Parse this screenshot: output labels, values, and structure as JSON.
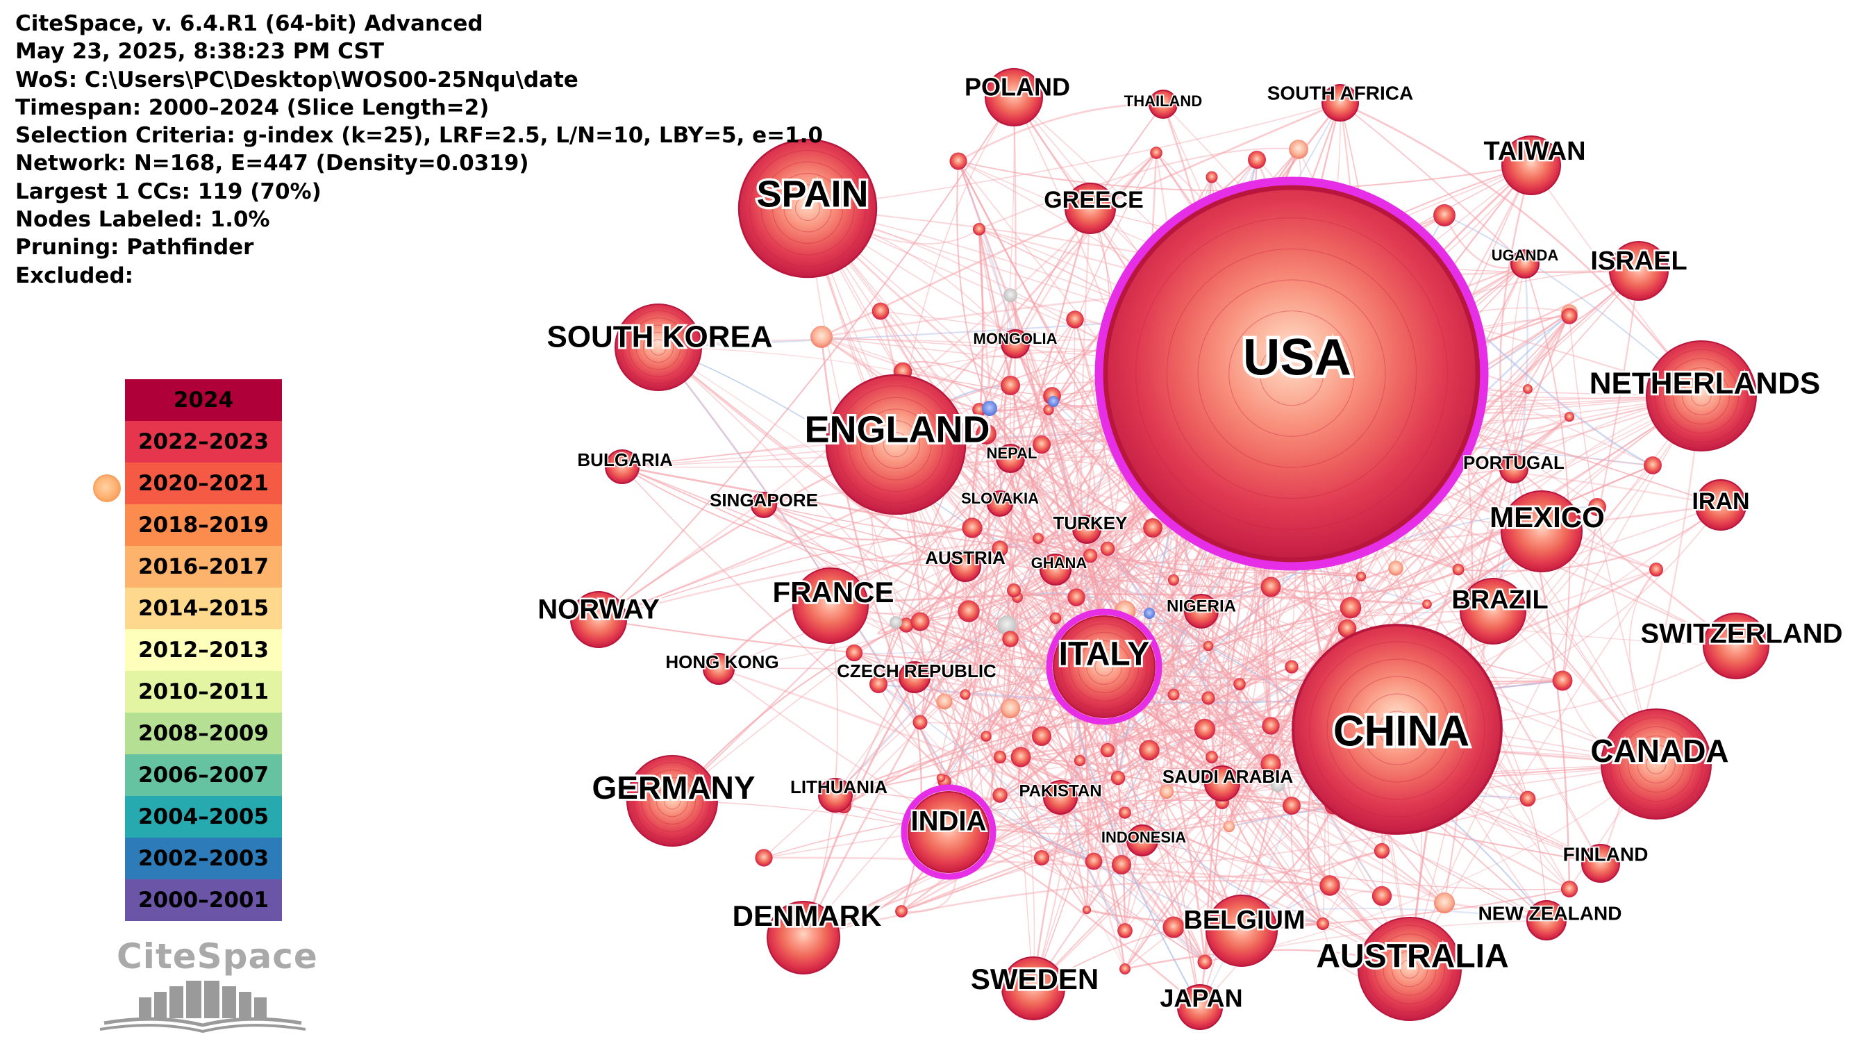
{
  "header": {
    "lines": [
      "CiteSpace, v. 6.4.R1 (64-bit) Advanced",
      "May 23, 2025, 8:38:23 PM CST",
      "WoS: C:\\Users\\PC\\Desktop\\WOS00-25Nqu\\date",
      "Timespan: 2000–2024 (Slice Length=2)",
      "Selection Criteria: g-index (k=25), LRF=2.5, L/N=10, LBY=5, e=1.0",
      "Network: N=168, E=447 (Density=0.0319)",
      "Largest 1 CCs: 119 (70%)",
      "Nodes Labeled: 1.0%",
      "Pruning: Pathfinder",
      "Excluded:"
    ]
  },
  "legend": {
    "items": [
      {
        "label": "2024",
        "color": "#b0003a"
      },
      {
        "label": "2022–2023",
        "color": "#e6364d"
      },
      {
        "label": "2020–2021",
        "color": "#f55a45"
      },
      {
        "label": "2018–2019",
        "color": "#fb8c4e"
      },
      {
        "label": "2016–2017",
        "color": "#fdb36b"
      },
      {
        "label": "2014–2015",
        "color": "#fed98d"
      },
      {
        "label": "2012–2013",
        "color": "#feffbb"
      },
      {
        "label": "2010–2011",
        "color": "#e3f4a3"
      },
      {
        "label": "2008–2009",
        "color": "#b5df92"
      },
      {
        "label": "2006–2007",
        "color": "#66c3a2"
      },
      {
        "label": "2004–2005",
        "color": "#27a9b0"
      },
      {
        "label": "2002–2003",
        "color": "#2d7bb8"
      },
      {
        "label": "2000–2001",
        "color": "#6b55a6"
      }
    ]
  },
  "logo": {
    "text": "CiteSpace",
    "icon": "citespace-book-logo-icon"
  },
  "colors": {
    "node_core": "#f06a5a",
    "node_outer": "#c81d40",
    "centrality_ring": "#e62ee6",
    "edge": "#f4a0a8",
    "edge_blue": "#a8bde8"
  },
  "nodes": [
    {
      "id": "usa",
      "label": "USA",
      "size": 10,
      "ring": true
    },
    {
      "id": "china",
      "label": "CHINA",
      "size": 8,
      "ring": false
    },
    {
      "id": "england",
      "label": "ENGLAND",
      "size": 6.5,
      "ring": false
    },
    {
      "id": "spain",
      "label": "SPAIN",
      "size": 6,
      "ring": false
    },
    {
      "id": "australia",
      "label": "AUSTRALIA",
      "size": 5.4,
      "ring": false
    },
    {
      "id": "canada",
      "label": "CANADA",
      "size": 5.3,
      "ring": false
    },
    {
      "id": "netherlands",
      "label": "NETHERLANDS",
      "size": 5,
      "ring": false
    },
    {
      "id": "italy",
      "label": "ITALY",
      "size": 5,
      "ring": true
    },
    {
      "id": "germany",
      "label": "GERMANY",
      "size": 4.6,
      "ring": false
    },
    {
      "id": "south-korea",
      "label": "SOUTH KOREA",
      "size": 4.2,
      "ring": false
    },
    {
      "id": "india",
      "label": "INDIA",
      "size": 4,
      "ring": true
    },
    {
      "id": "mexico",
      "label": "MEXICO",
      "size": 3.8,
      "ring": false
    },
    {
      "id": "france",
      "label": "FRANCE",
      "size": 3.8,
      "ring": false
    },
    {
      "id": "denmark",
      "label": "DENMARK",
      "size": 3.6,
      "ring": false
    },
    {
      "id": "belgium",
      "label": "BELGIUM",
      "size": 3.5,
      "ring": false
    },
    {
      "id": "switzerland",
      "label": "SWITZERLAND",
      "size": 3.3,
      "ring": false
    },
    {
      "id": "brazil",
      "label": "BRAZIL",
      "size": 3.2,
      "ring": false
    },
    {
      "id": "sweden",
      "label": "SWEDEN",
      "size": 3.1,
      "ring": false
    },
    {
      "id": "israel",
      "label": "ISRAEL",
      "size": 3,
      "ring": false
    },
    {
      "id": "taiwan",
      "label": "TAIWAN",
      "size": 3,
      "ring": false
    },
    {
      "id": "poland",
      "label": "POLAND",
      "size": 2.9,
      "ring": false
    },
    {
      "id": "norway",
      "label": "NORWAY",
      "size": 2.8,
      "ring": false
    },
    {
      "id": "greece",
      "label": "GREECE",
      "size": 2.6,
      "ring": false
    },
    {
      "id": "iran",
      "label": "IRAN",
      "size": 2.6,
      "ring": false
    },
    {
      "id": "japan",
      "label": "JAPAN",
      "size": 2.3,
      "ring": false
    },
    {
      "id": "new-zealand",
      "label": "NEW ZEALAND",
      "size": 2.1,
      "ring": false
    },
    {
      "id": "finland",
      "label": "FINLAND",
      "size": 2.0,
      "ring": false
    },
    {
      "id": "saudi-arabia",
      "label": "SAUDI ARABIA",
      "size": 1.9,
      "ring": false
    },
    {
      "id": "south-africa",
      "label": "SOUTH AFRICA",
      "size": 1.8,
      "ring": false
    },
    {
      "id": "pakistan",
      "label": "PAKISTAN",
      "size": 1.9,
      "ring": false
    },
    {
      "id": "nigeria",
      "label": "NIGERIA",
      "size": 1.9,
      "ring": false
    },
    {
      "id": "bulgaria",
      "label": "BULGARIA",
      "size": 1.8,
      "ring": false
    },
    {
      "id": "lithuania",
      "label": "LITHUANIA",
      "size": 1.8,
      "ring": false
    },
    {
      "id": "czech-republic",
      "label": "CZECH REPUBLIC",
      "size": 1.7,
      "ring": false
    },
    {
      "id": "hong-kong",
      "label": "HONG KONG",
      "size": 1.7,
      "ring": false
    },
    {
      "id": "indonesia",
      "label": "INDONESIA",
      "size": 1.7,
      "ring": false
    },
    {
      "id": "ghana",
      "label": "GHANA",
      "size": 1.7,
      "ring": false
    },
    {
      "id": "austria",
      "label": "AUSTRIA",
      "size": 1.7,
      "ring": false
    },
    {
      "id": "turkey",
      "label": "TURKEY",
      "size": 1.6,
      "ring": false
    },
    {
      "id": "portugal",
      "label": "PORTUGAL",
      "size": 1.6,
      "ring": false
    },
    {
      "id": "uganda",
      "label": "UGANDA",
      "size": 1.6,
      "ring": false
    },
    {
      "id": "thailand",
      "label": "THAILAND",
      "size": 1.6,
      "ring": false
    },
    {
      "id": "mongolia",
      "label": "MONGOLIA",
      "size": 1.6,
      "ring": false
    },
    {
      "id": "nepal",
      "label": "NEPAL",
      "size": 1.6,
      "ring": false
    },
    {
      "id": "slovakia",
      "label": "SLOVAKIA",
      "size": 1.5,
      "ring": false
    },
    {
      "id": "singapore",
      "label": "SINGAPORE",
      "size": 1.5,
      "ring": false
    }
  ]
}
